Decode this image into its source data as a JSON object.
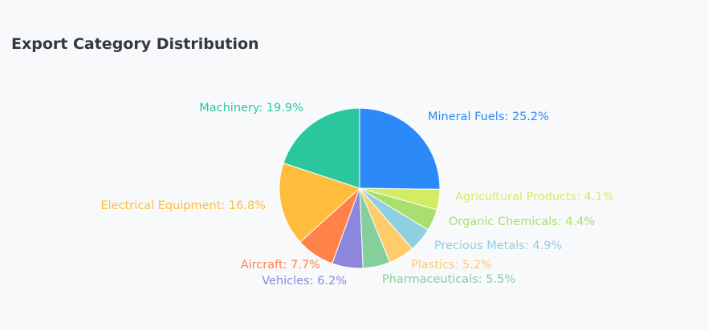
{
  "chart_data": {
    "type": "pie",
    "title": "Export Category Distribution",
    "slices": [
      {
        "name": "Mineral Fuels",
        "value": 25.2,
        "label": "Mineral Fuels: 25.2%",
        "color": "#2b8af7"
      },
      {
        "name": "Agricultural Products",
        "value": 4.1,
        "label": "Agricultural Products: 4.1%",
        "color": "#d4ec63"
      },
      {
        "name": "Organic Chemicals",
        "value": 4.4,
        "label": "Organic Chemicals: 4.4%",
        "color": "#a8df6e"
      },
      {
        "name": "Precious Metals",
        "value": 4.9,
        "label": "Precious Metals: 4.9%",
        "color": "#8fcfe0"
      },
      {
        "name": "Plastics",
        "value": 5.2,
        "label": "Plastics: 5.2%",
        "color": "#ffcb6b"
      },
      {
        "name": "Pharmaceuticals",
        "value": 5.5,
        "label": "Pharmaceuticals: 5.5%",
        "color": "#86cf9d"
      },
      {
        "name": "Vehicles",
        "value": 6.2,
        "label": "Vehicles: 6.2%",
        "color": "#8c87dc"
      },
      {
        "name": "Aircraft",
        "value": 7.7,
        "label": "Aircraft: 7.7%",
        "color": "#ff824b"
      },
      {
        "name": "Electrical Equipment",
        "value": 16.8,
        "label": "Electrical Equipment: 16.8%",
        "color": "#ffbd3b"
      },
      {
        "name": "Machinery",
        "value": 19.9,
        "label": "Machinery: 19.9%",
        "color": "#2ac79f"
      }
    ]
  }
}
